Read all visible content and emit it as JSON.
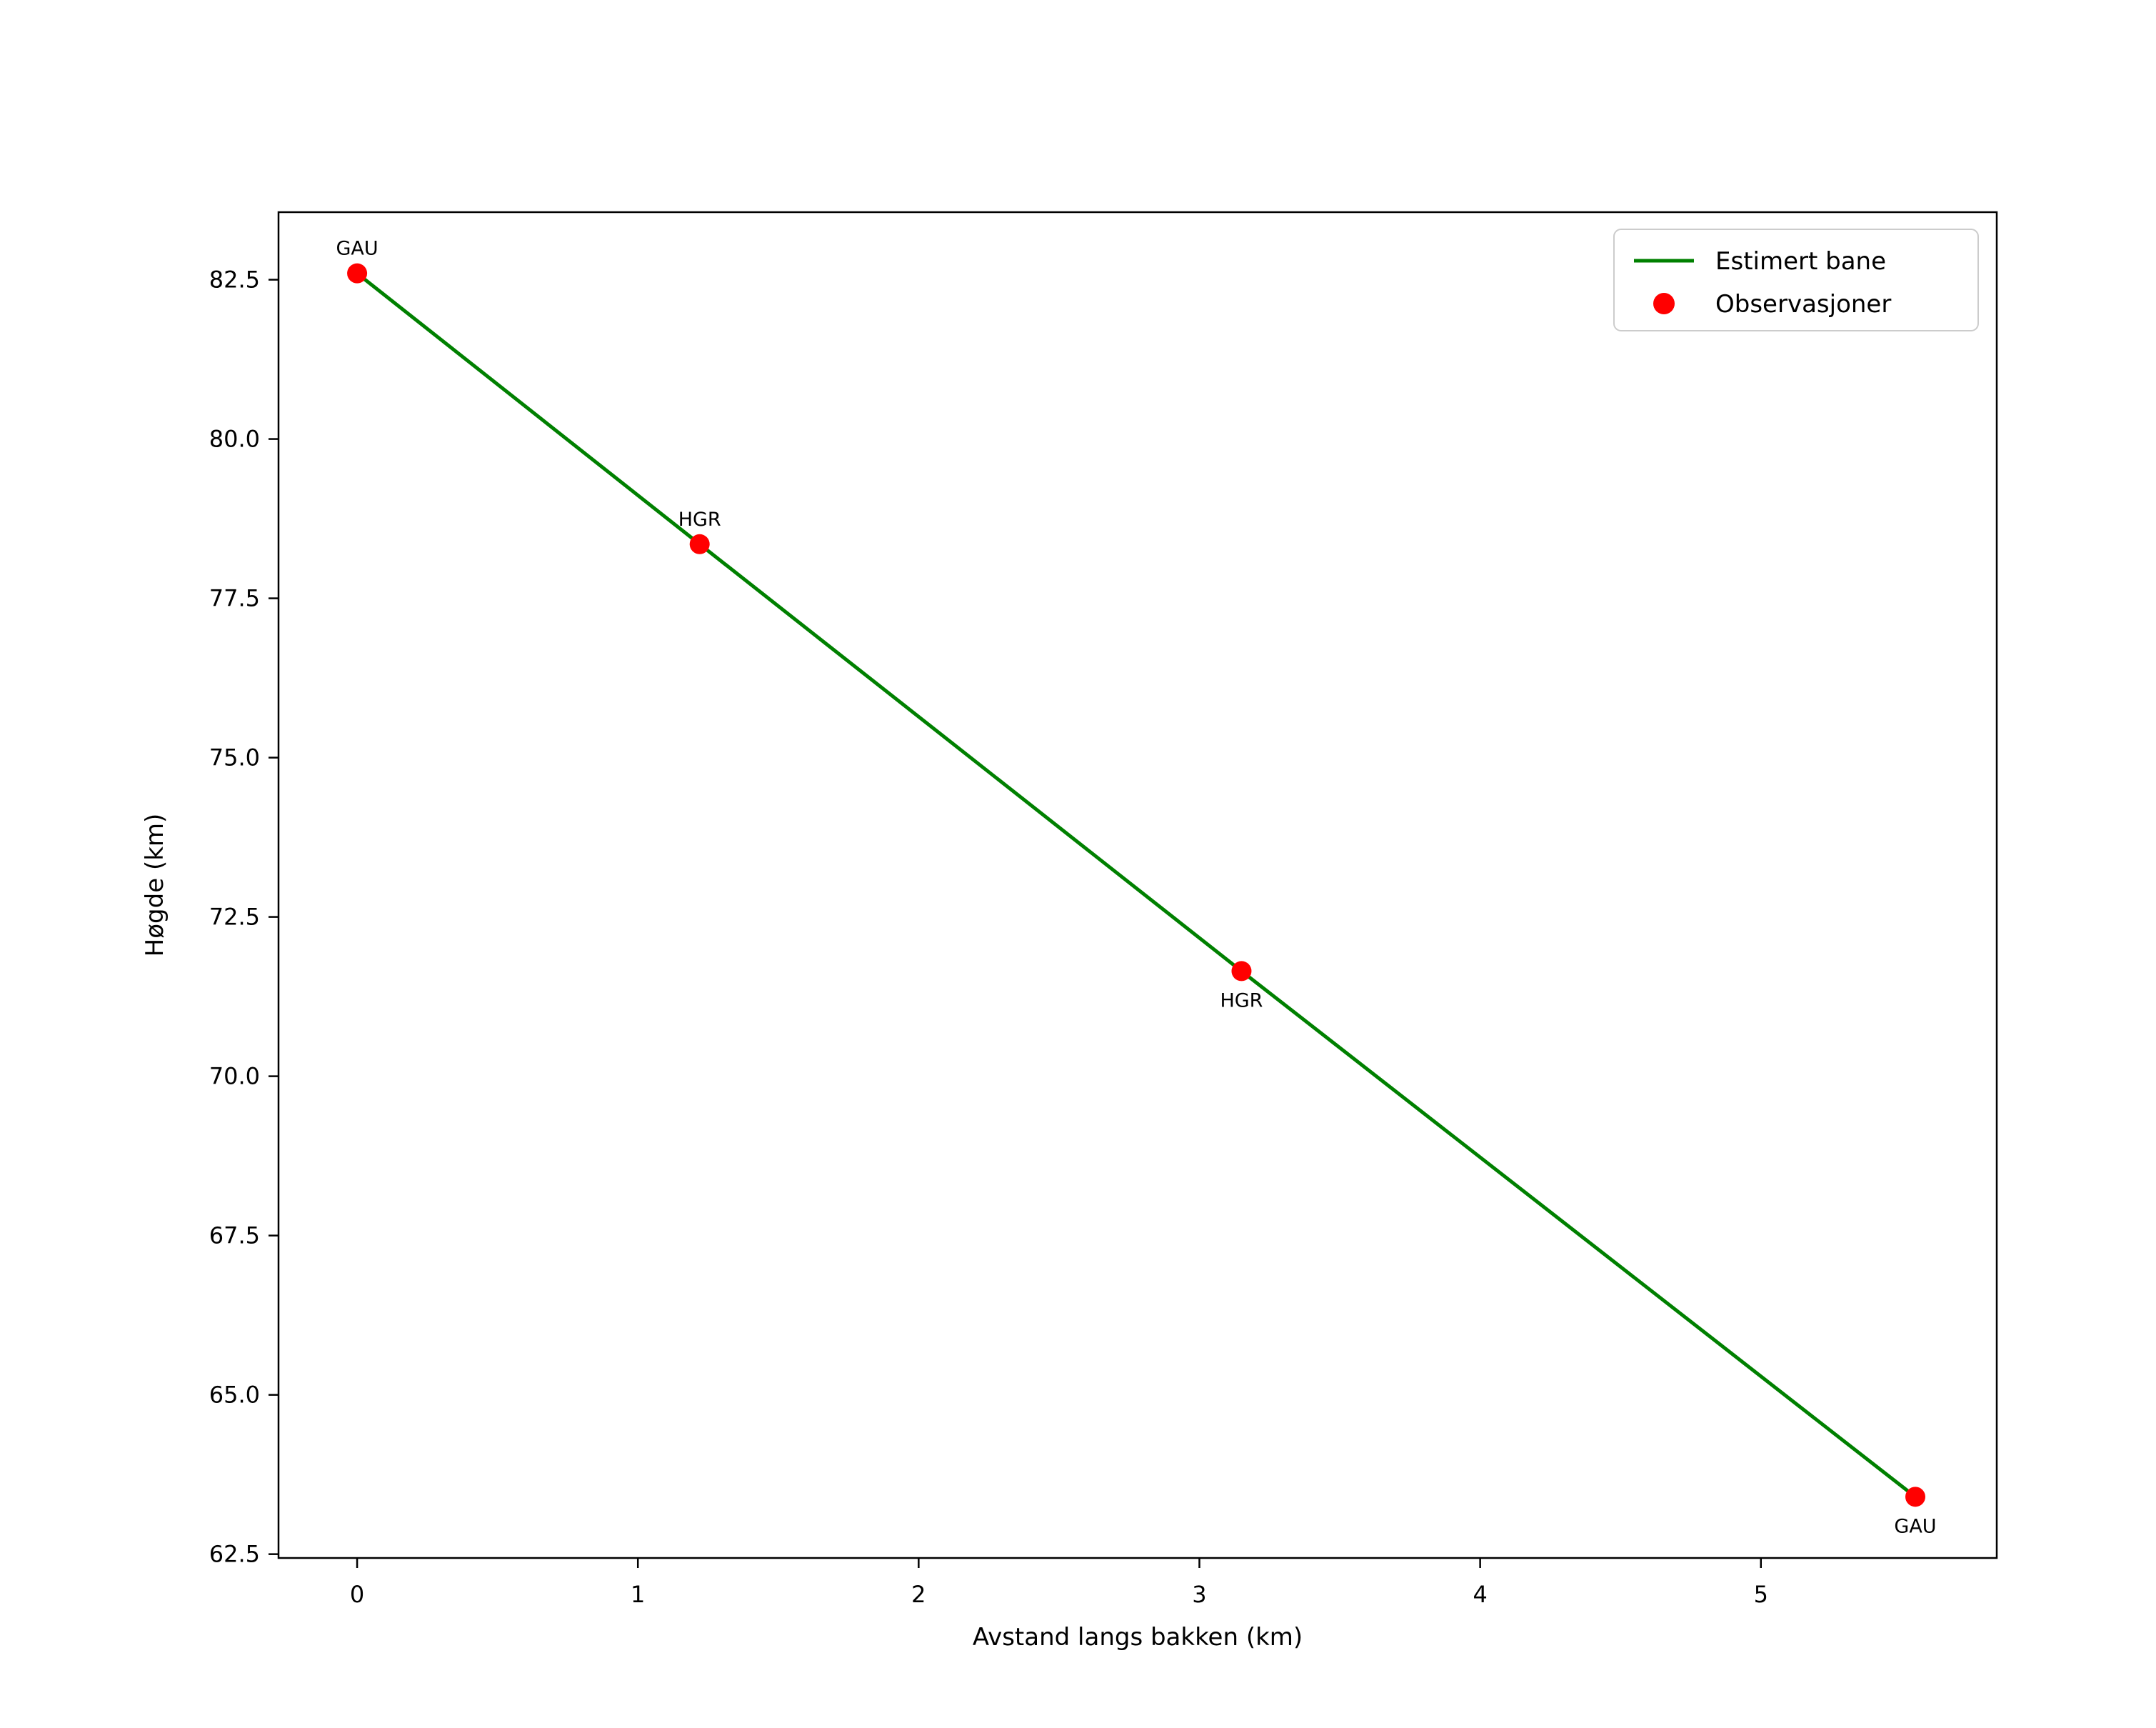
{
  "figure": {
    "background": "#ffffff"
  },
  "chart_data": {
    "type": "line",
    "title": "",
    "xlabel": "Avstand langs bakken (km)",
    "ylabel": "Høgde (km)",
    "xlim": [
      -0.28,
      5.84
    ],
    "ylim": [
      62.44,
      83.56
    ],
    "xticks": [
      0,
      1,
      2,
      3,
      4,
      5
    ],
    "xtick_labels": [
      "0",
      "1",
      "2",
      "3",
      "4",
      "5"
    ],
    "yticks": [
      62.5,
      65.0,
      67.5,
      70.0,
      72.5,
      75.0,
      77.5,
      80.0,
      82.5
    ],
    "ytick_labels": [
      "62.5",
      "65.0",
      "67.5",
      "70.0",
      "72.5",
      "75.0",
      "77.5",
      "80.0",
      "82.5"
    ],
    "grid": false,
    "series": [
      {
        "name": "Estimert bane",
        "type": "line",
        "color": "#008000",
        "x": [
          0.0,
          1.22,
          3.15,
          5.55
        ],
        "y": [
          82.6,
          78.35,
          71.65,
          63.4
        ]
      },
      {
        "name": "Observasjoner",
        "type": "scatter",
        "color": "#ff0000",
        "x": [
          0.0,
          1.22,
          3.15,
          5.55
        ],
        "y": [
          82.6,
          78.35,
          71.65,
          63.4
        ],
        "labels": [
          "GAU",
          "HGR",
          "HGR",
          "GAU"
        ],
        "label_positions": [
          "above",
          "above",
          "below",
          "below"
        ]
      }
    ],
    "legend": {
      "position": "upper right",
      "entries": [
        {
          "label": "Estimert bane",
          "marker": "line",
          "color": "#008000"
        },
        {
          "label": "Observasjoner",
          "marker": "dot",
          "color": "#ff0000"
        }
      ]
    }
  }
}
